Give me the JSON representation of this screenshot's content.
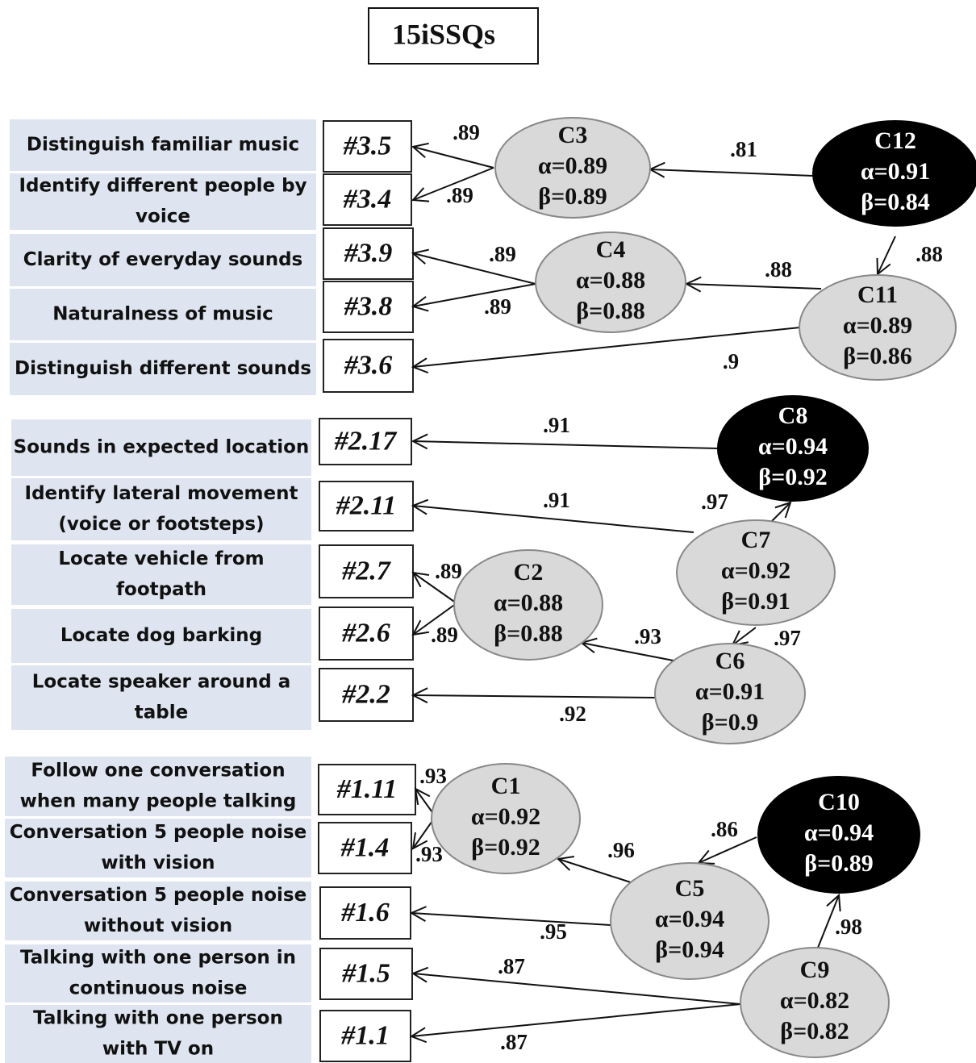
{
  "title": "15iSSQs",
  "items": [
    {
      "lines": [
        "Distinguish familiar music"
      ],
      "code": "#3.5"
    },
    {
      "lines": [
        "Identify different people by",
        "voice"
      ],
      "code": "#3.4"
    },
    {
      "lines": [
        "Clarity of everyday sounds"
      ],
      "code": "#3.9"
    },
    {
      "lines": [
        "Naturalness of music"
      ],
      "code": "#3.8"
    },
    {
      "lines": [
        "Distinguish different sounds"
      ],
      "code": "#3.6"
    },
    {
      "lines": [
        "Sounds in expected location"
      ],
      "code": "#2.17"
    },
    {
      "lines": [
        "Identify lateral movement",
        "(voice or footsteps)"
      ],
      "code": "#2.11"
    },
    {
      "lines": [
        "Locate vehicle from",
        "footpath"
      ],
      "code": "#2.7"
    },
    {
      "lines": [
        "Locate dog barking"
      ],
      "code": "#2.6"
    },
    {
      "lines": [
        "Locate speaker around a",
        "table"
      ],
      "code": "#2.2"
    },
    {
      "lines": [
        "Follow one conversation",
        "when many people talking"
      ],
      "code": "#1.11"
    },
    {
      "lines": [
        "Conversation 5 people noise",
        "with vision"
      ],
      "code": "#1.4"
    },
    {
      "lines": [
        "Conversation 5 people noise",
        "without vision"
      ],
      "code": "#1.6"
    },
    {
      "lines": [
        "Talking with one person in",
        "continuous noise"
      ],
      "code": "#1.5"
    },
    {
      "lines": [
        "Talking with one person",
        "with TV on"
      ],
      "code": "#1.1"
    }
  ],
  "nodes": [
    {
      "name": "C3",
      "alpha": "α=0.89",
      "beta": "β=0.89"
    },
    {
      "name": "C12",
      "alpha": "α=0.91",
      "beta": "β=0.84"
    },
    {
      "name": "C4",
      "alpha": "α=0.88",
      "beta": "β=0.88"
    },
    {
      "name": "C11",
      "alpha": "α=0.89",
      "beta": "β=0.86"
    },
    {
      "name": "C8",
      "alpha": "α=0.94",
      "beta": "β=0.92"
    },
    {
      "name": "C7",
      "alpha": "α=0.92",
      "beta": "β=0.91"
    },
    {
      "name": "C2",
      "alpha": "α=0.88",
      "beta": "β=0.88"
    },
    {
      "name": "C6",
      "alpha": "α=0.91",
      "beta": "β=0.9"
    },
    {
      "name": "C1",
      "alpha": "α=0.92",
      "beta": "β=0.92"
    },
    {
      "name": "C10",
      "alpha": "α=0.94",
      "beta": "β=0.89"
    },
    {
      "name": "C5",
      "alpha": "α=0.94",
      "beta": "β=0.94"
    },
    {
      "name": "C9",
      "alpha": "α=0.82",
      "beta": "β=0.82"
    }
  ],
  "edges": [
    {
      "from": "C3",
      "to": "#3.5",
      "label": ".89"
    },
    {
      "from": "C3",
      "to": "#3.4",
      "label": ".89"
    },
    {
      "from": "C12",
      "to": "C3",
      "label": ".81"
    },
    {
      "from": "C12",
      "to": "C11",
      "label": ".88"
    },
    {
      "from": "C4",
      "to": "#3.9",
      "label": ".89"
    },
    {
      "from": "C4",
      "to": "#3.8",
      "label": ".89"
    },
    {
      "from": "C11",
      "to": "C4",
      "label": ".88"
    },
    {
      "from": "C11",
      "to": "#3.6",
      "label": ".9"
    },
    {
      "from": "C8",
      "to": "#2.17",
      "label": ".91"
    },
    {
      "from": "C7",
      "to": "#2.11",
      "label": ".91"
    },
    {
      "from": "C7",
      "to": "C8",
      "label": ".97"
    },
    {
      "from": "C2",
      "to": "#2.7",
      "label": ".89"
    },
    {
      "from": "C2",
      "to": "#2.6",
      "label": ".89"
    },
    {
      "from": "C7",
      "to": "C6",
      "label": ".97"
    },
    {
      "from": "C6",
      "to": "C2",
      "label": ".93"
    },
    {
      "from": "C6",
      "to": "#2.2",
      "label": ".92"
    },
    {
      "from": "C1",
      "to": "#1.11",
      "label": ".93"
    },
    {
      "from": "C1",
      "to": "#1.4",
      "label": ".93"
    },
    {
      "from": "C5",
      "to": "C1",
      "label": ".96"
    },
    {
      "from": "C10",
      "to": "C5",
      "label": ".86"
    },
    {
      "from": "C5",
      "to": "#1.6",
      "label": ".95"
    },
    {
      "from": "C9",
      "to": "C10",
      "label": ".98"
    },
    {
      "from": "C9",
      "to": "#1.5",
      "label": ".87"
    },
    {
      "from": "C9",
      "to": "#1.1",
      "label": ".87"
    }
  ]
}
